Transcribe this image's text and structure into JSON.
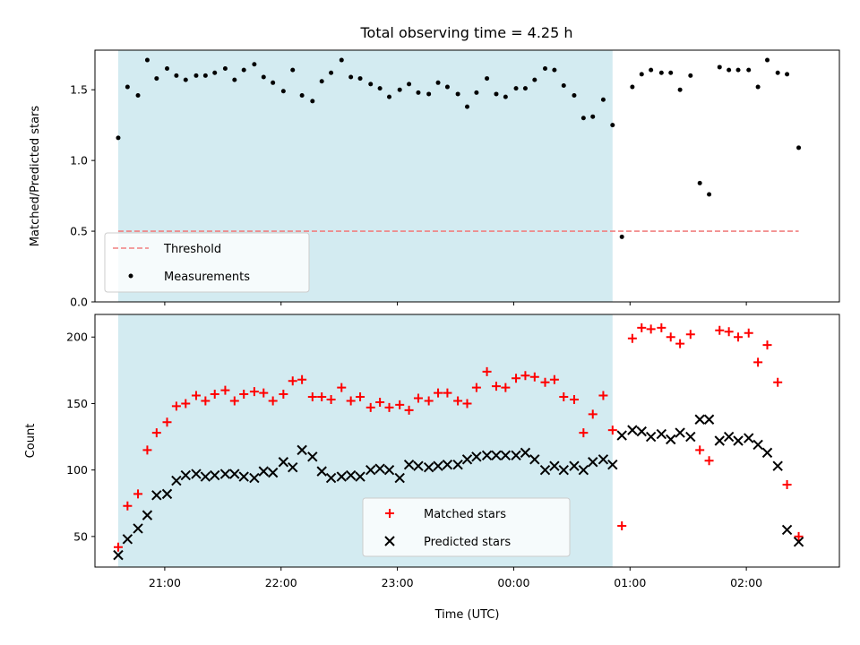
{
  "title": "Total observing time = 4.25 h",
  "chart_data": [
    {
      "type": "scatter",
      "ylabel": "Matched/Predicted stars",
      "xlim": [
        20.4,
        2.8
      ],
      "ylim": [
        0,
        1.78
      ],
      "yticks": [
        0.0,
        0.5,
        1.0,
        1.5
      ],
      "ytick_labels": [
        "0.0",
        "0.5",
        "1.0",
        "1.5"
      ],
      "shaded_region": {
        "x": [
          20.6,
          0.85
        ],
        "color": "#d3ebf1"
      },
      "threshold": {
        "name": "Threshold",
        "y": 0.5,
        "x": [
          20.6,
          2.45
        ],
        "color": "#f08080",
        "dash": true
      },
      "series": [
        {
          "name": "Measurements",
          "marker": "dot",
          "color": "#000000",
          "x": [
            20.6,
            20.68,
            20.77,
            20.85,
            20.93,
            21.02,
            21.1,
            21.18,
            21.27,
            21.35,
            21.43,
            21.52,
            21.6,
            21.68,
            21.77,
            21.85,
            21.93,
            22.02,
            22.1,
            22.18,
            22.27,
            22.35,
            22.43,
            22.52,
            22.6,
            22.68,
            22.77,
            22.85,
            22.93,
            23.02,
            23.1,
            23.18,
            23.27,
            23.35,
            23.43,
            23.52,
            23.6,
            23.68,
            23.77,
            23.85,
            23.93,
            0.02,
            0.1,
            0.18,
            0.27,
            0.35,
            0.43,
            0.52,
            0.6,
            0.68,
            0.77,
            0.85,
            0.93,
            1.02,
            1.1,
            1.18,
            1.27,
            1.35,
            1.43,
            1.52,
            1.6,
            1.68,
            1.77,
            1.85,
            1.93,
            2.02,
            2.1,
            2.18,
            2.27,
            2.35,
            2.45
          ],
          "y": [
            1.16,
            1.52,
            1.46,
            1.71,
            1.58,
            1.65,
            1.6,
            1.57,
            1.6,
            1.6,
            1.62,
            1.65,
            1.57,
            1.64,
            1.68,
            1.59,
            1.55,
            1.49,
            1.64,
            1.46,
            1.42,
            1.56,
            1.62,
            1.71,
            1.59,
            1.58,
            1.54,
            1.51,
            1.45,
            1.5,
            1.54,
            1.48,
            1.47,
            1.55,
            1.52,
            1.47,
            1.38,
            1.48,
            1.58,
            1.47,
            1.45,
            1.51,
            1.51,
            1.57,
            1.65,
            1.64,
            1.53,
            1.46,
            1.3,
            1.31,
            1.43,
            1.25,
            0.46,
            1.52,
            1.61,
            1.64,
            1.62,
            1.62,
            1.5,
            1.6,
            0.84,
            0.76,
            1.66,
            1.64,
            1.64,
            1.64,
            1.52,
            1.71,
            1.62,
            1.61,
            1.09
          ]
        }
      ],
      "legend": {
        "position": "lower left",
        "entries": [
          "Threshold",
          "Measurements"
        ]
      }
    },
    {
      "type": "scatter",
      "xlabel": "Time (UTC)",
      "ylabel": "Count",
      "xlim": [
        20.4,
        2.8
      ],
      "ylim": [
        27,
        217
      ],
      "yticks": [
        50,
        100,
        150,
        200
      ],
      "ytick_labels": [
        "50",
        "100",
        "150",
        "200"
      ],
      "xticks": [
        21,
        22,
        23,
        0,
        1,
        2
      ],
      "xtick_labels": [
        "21:00",
        "22:00",
        "23:00",
        "00:00",
        "01:00",
        "02:00"
      ],
      "shaded_region": {
        "x": [
          20.6,
          0.85
        ],
        "color": "#d3ebf1"
      },
      "series": [
        {
          "name": "Matched stars",
          "marker": "plus",
          "color": "#ff0000",
          "x": [
            20.6,
            20.68,
            20.77,
            20.85,
            20.93,
            21.02,
            21.1,
            21.18,
            21.27,
            21.35,
            21.43,
            21.52,
            21.6,
            21.68,
            21.77,
            21.85,
            21.93,
            22.02,
            22.1,
            22.18,
            22.27,
            22.35,
            22.43,
            22.52,
            22.6,
            22.68,
            22.77,
            22.85,
            22.93,
            23.02,
            23.1,
            23.18,
            23.27,
            23.35,
            23.43,
            23.52,
            23.6,
            23.68,
            23.77,
            23.85,
            23.93,
            0.02,
            0.1,
            0.18,
            0.27,
            0.35,
            0.43,
            0.52,
            0.6,
            0.68,
            0.77,
            0.85,
            0.93,
            1.02,
            1.1,
            1.18,
            1.27,
            1.35,
            1.43,
            1.52,
            1.6,
            1.68,
            1.77,
            1.85,
            1.93,
            2.02,
            2.1,
            2.18,
            2.27,
            2.35,
            2.45
          ],
          "y": [
            42,
            73,
            82,
            115,
            128,
            136,
            148,
            150,
            156,
            152,
            157,
            160,
            152,
            157,
            159,
            158,
            152,
            157,
            167,
            168,
            155,
            155,
            153,
            162,
            152,
            155,
            147,
            151,
            147,
            149,
            145,
            154,
            152,
            158,
            158,
            152,
            150,
            162,
            174,
            163,
            162,
            169,
            171,
            170,
            166,
            168,
            155,
            153,
            128,
            142,
            156,
            130,
            58,
            199,
            207,
            206,
            207,
            200,
            195,
            202,
            115,
            107,
            205,
            204,
            200,
            203,
            181,
            194,
            166,
            89,
            50
          ]
        },
        {
          "name": "Predicted stars",
          "marker": "x",
          "color": "#000000",
          "x": [
            20.6,
            20.68,
            20.77,
            20.85,
            20.93,
            21.02,
            21.1,
            21.18,
            21.27,
            21.35,
            21.43,
            21.52,
            21.6,
            21.68,
            21.77,
            21.85,
            21.93,
            22.02,
            22.1,
            22.18,
            22.27,
            22.35,
            22.43,
            22.52,
            22.6,
            22.68,
            22.77,
            22.85,
            22.93,
            23.02,
            23.1,
            23.18,
            23.27,
            23.35,
            23.43,
            23.52,
            23.6,
            23.68,
            23.77,
            23.85,
            23.93,
            0.02,
            0.1,
            0.18,
            0.27,
            0.35,
            0.43,
            0.52,
            0.6,
            0.68,
            0.77,
            0.85,
            0.93,
            1.02,
            1.1,
            1.18,
            1.27,
            1.35,
            1.43,
            1.52,
            1.6,
            1.68,
            1.77,
            1.85,
            1.93,
            2.02,
            2.1,
            2.18,
            2.27,
            2.35,
            2.45
          ],
          "y": [
            36,
            48,
            56,
            66,
            81,
            82,
            92,
            96,
            97,
            95,
            96,
            97,
            97,
            95,
            94,
            99,
            98,
            106,
            102,
            115,
            110,
            99,
            94,
            95,
            96,
            95,
            100,
            101,
            100,
            94,
            104,
            103,
            102,
            103,
            104,
            104,
            108,
            110,
            111,
            111,
            111,
            111,
            113,
            108,
            100,
            103,
            100,
            103,
            100,
            106,
            108,
            104,
            126,
            130,
            129,
            125,
            127,
            123,
            128,
            125,
            138,
            138,
            122,
            125,
            122,
            124,
            119,
            113,
            103,
            55,
            46
          ]
        }
      ],
      "legend": {
        "position": "lower center",
        "entries": [
          "Matched stars",
          "Predicted stars"
        ]
      }
    }
  ]
}
